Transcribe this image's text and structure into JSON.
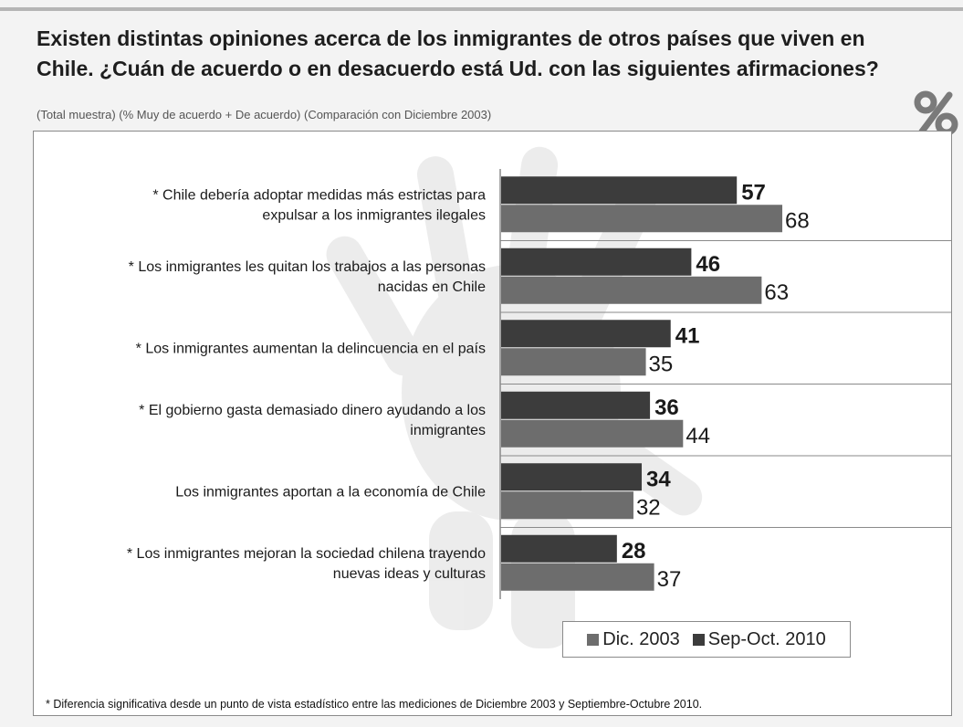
{
  "header": {
    "title_line1": "Existen distintas opiniones acerca de los inmigrantes de otros países que viven en",
    "title_line2": "Chile. ¿Cuán de acuerdo o en desacuerdo está Ud. con las siguientes afirmaciones?",
    "subtitle": "(Total muestra) (% Muy de acuerdo + De acuerdo) (Comparación con Diciembre 2003)",
    "icon": "percent-icon"
  },
  "colors": {
    "sep_oct_2010": "#3c3c3c",
    "dic_2003": "#6d6d6d",
    "frame": "#8a8a8a"
  },
  "chart_data": {
    "type": "bar",
    "orientation": "horizontal",
    "categories": [
      [
        "* Chile debería adoptar medidas más estrictas para",
        "expulsar a los inmigrantes ilegales"
      ],
      [
        "* Los inmigrantes les quitan los trabajos a las personas",
        "nacidas en Chile"
      ],
      [
        "* Los inmigrantes aumentan la delincuencia en el país"
      ],
      [
        "* El gobierno gasta demasiado dinero ayudando a los",
        "inmigrantes"
      ],
      [
        "Los inmigrantes aportan a la economía de Chile"
      ],
      [
        "* Los inmigrantes mejoran la sociedad chilena trayendo",
        "nuevas ideas y culturas"
      ]
    ],
    "series": [
      {
        "name": "Sep-Oct. 2010",
        "values": [
          57,
          46,
          41,
          36,
          34,
          28
        ]
      },
      {
        "name": "Dic. 2003",
        "values": [
          68,
          63,
          35,
          44,
          32,
          37
        ]
      }
    ],
    "xlim": [
      0,
      100
    ],
    "grid": false,
    "legend_position": "bottom-right",
    "legend_order": [
      "Dic. 2003",
      "Sep-Oct. 2010"
    ]
  },
  "footnote": "* Diferencia significativa desde un punto de vista estadístico entre las mediciones de Diciembre 2003 y Septiembre-Octubre 2010."
}
